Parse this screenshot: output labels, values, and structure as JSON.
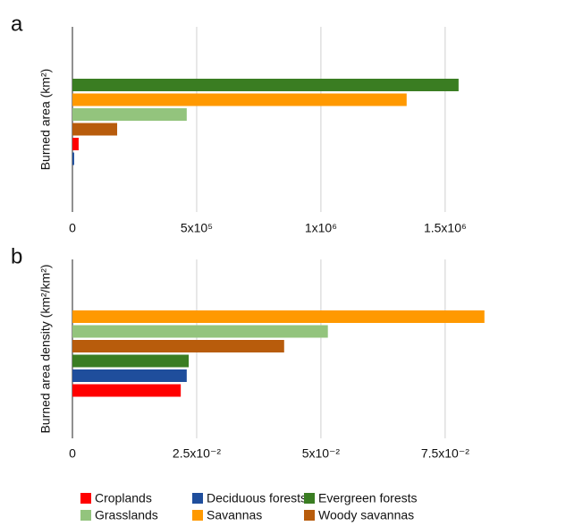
{
  "chart_data": [
    {
      "type": "bar",
      "panel_label": "a",
      "y_label": "Burned area (km²)",
      "series": [
        {
          "name": "Evergreen forests",
          "color": "#3a7d22",
          "values": [
            1554000
          ]
        },
        {
          "name": "Savannas",
          "color": "#ff9900",
          "values": [
            1345000
          ]
        },
        {
          "name": "Grasslands",
          "color": "#93c47d",
          "values": [
            460000
          ]
        },
        {
          "name": "Woody savannas",
          "color": "#b85c0c",
          "values": [
            180000
          ]
        },
        {
          "name": "Croplands",
          "color": "#ff0000",
          "values": [
            25000
          ]
        },
        {
          "name": "Deciduous forests",
          "color": "#1f4e9c",
          "values": [
            7000
          ]
        }
      ],
      "xlim": [
        0,
        1720000
      ],
      "xticks": [
        0,
        {
          "value": 500000,
          "label": "5x10⁵"
        },
        {
          "value": 1000000,
          "label": "1x10⁶"
        },
        {
          "value": 1500000,
          "label": "1.5x10⁶"
        }
      ],
      "grid": true
    },
    {
      "type": "bar",
      "panel_label": "b",
      "y_label": "Burned area density (km²/km²)",
      "series": [
        {
          "color": "#ff9900",
          "values": [
            0.0829
          ]
        },
        {
          "color": "#93c47d",
          "values": [
            0.0514
          ]
        },
        {
          "color": "#b85c0c",
          "values": [
            0.0426
          ]
        },
        {
          "color": "#3a7d22",
          "values": [
            0.0234
          ]
        },
        {
          "color": "#1f4e9c",
          "values": [
            0.023
          ]
        },
        {
          "color": "#ff0000",
          "values": [
            0.0218
          ]
        }
      ],
      "xlim": [
        0,
        0.086
      ],
      "xticks": [
        0,
        {
          "value": 0.025,
          "label": "2.5x10⁻²"
        },
        {
          "value": 0.05,
          "label": "5x10⁻²"
        },
        {
          "value": 0.075,
          "label": "7.5x10⁻²"
        }
      ],
      "grid": true
    }
  ]
}
